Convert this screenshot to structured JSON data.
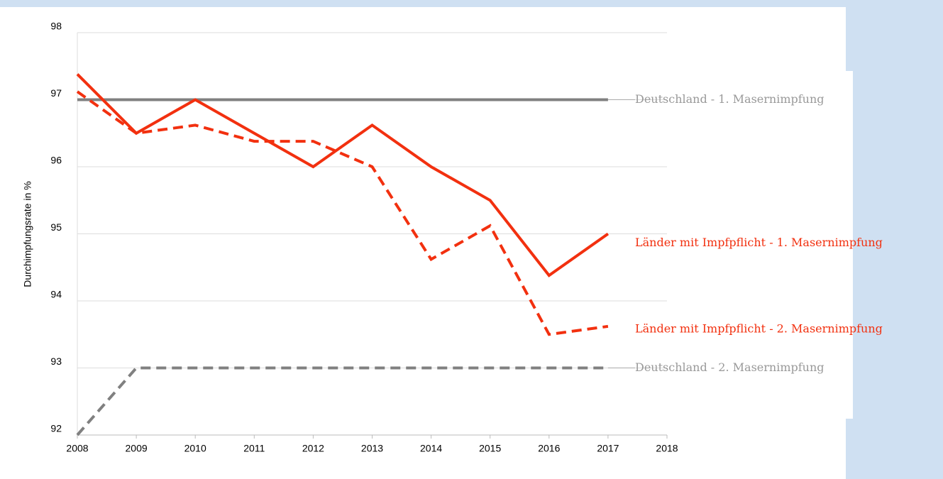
{
  "chart_data": {
    "type": "line",
    "y_axis_label": "Durchimpfungsrate in %",
    "x": [
      2008,
      2009,
      2010,
      2011,
      2012,
      2013,
      2014,
      2015,
      2016,
      2017
    ],
    "xlim": [
      2008,
      2018
    ],
    "xticks": [
      2008,
      2009,
      2010,
      2011,
      2012,
      2013,
      2014,
      2015,
      2016,
      2017,
      2018
    ],
    "ylim": [
      92,
      98
    ],
    "yticks": [
      92,
      93,
      94,
      95,
      96,
      97,
      98
    ],
    "grid": true,
    "series": [
      {
        "name": "Deutschland - 1. Masernimpfung",
        "color": "#808080",
        "dashed": false,
        "values": [
          97,
          97,
          97,
          97,
          97,
          97,
          97,
          97,
          97,
          97
        ]
      },
      {
        "name": "Länder mit Impfpflicht - 1. Masernimpfung",
        "color": "#f2300f",
        "dashed": false,
        "values": [
          97.38,
          96.5,
          97,
          96.5,
          96,
          96.62,
          96,
          95.5,
          94.38,
          95
        ]
      },
      {
        "name": "Länder mit Impfpflicht - 2. Masernimpfung",
        "color": "#f2300f",
        "dashed": true,
        "values": [
          97.12,
          96.5,
          96.62,
          96.38,
          96.38,
          96,
          94.62,
          95.12,
          93.5,
          93.62
        ]
      },
      {
        "name": "Deutschland - 2. Masernimpfung",
        "color": "#808080",
        "dashed": true,
        "values": [
          92,
          93,
          93,
          93,
          93,
          93,
          93,
          93,
          93,
          93
        ]
      }
    ]
  }
}
